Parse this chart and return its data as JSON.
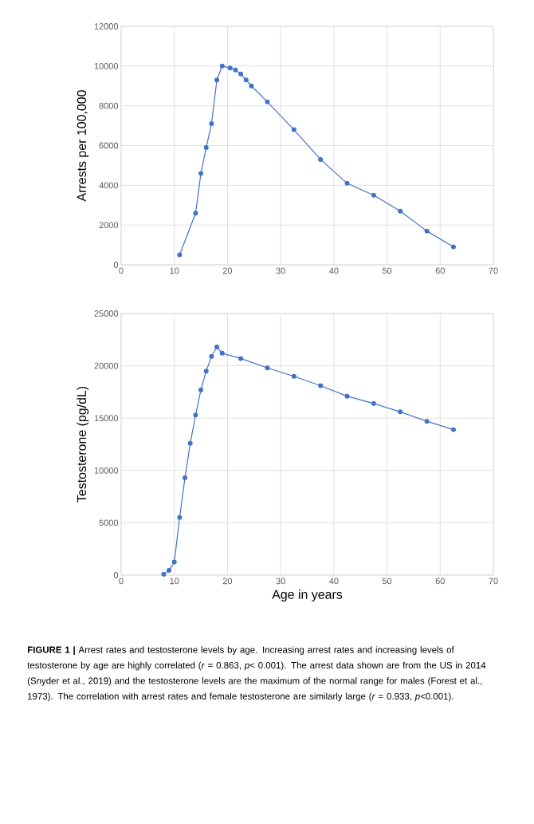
{
  "chart_data": [
    {
      "type": "line",
      "ylabel": "Arrests per 100,000",
      "x": [
        11,
        14,
        15,
        16,
        17,
        18,
        19,
        20.5,
        21.5,
        22.5,
        23.5,
        24.5,
        27.5,
        32.5,
        37.5,
        42.5,
        47.5,
        52.5,
        57.5,
        62.5
      ],
      "series": [
        {
          "color": "#4472c4",
          "values": [
            500,
            2600,
            4600,
            5900,
            7100,
            9300,
            10000,
            9900,
            9800,
            9600,
            9300,
            9000,
            8200,
            6800,
            5300,
            4100,
            3500,
            2700,
            1700,
            900
          ]
        }
      ],
      "xlim": [
        0,
        70
      ],
      "xticks": [
        0,
        10,
        20,
        30,
        40,
        50,
        60,
        70
      ],
      "ylim": [
        0,
        12000
      ],
      "yticks": [
        0,
        2000,
        4000,
        6000,
        8000,
        10000,
        12000
      ],
      "grid": true,
      "marker": "circle",
      "line_style": "solid"
    },
    {
      "type": "line",
      "ylabel": "Testosterone (pg/dL)",
      "xlabel": "Age in years",
      "x": [
        8,
        9,
        10,
        11,
        12,
        13,
        14,
        15,
        16,
        17,
        18,
        19,
        22.5,
        27.5,
        32.5,
        37.5,
        42.5,
        47.5,
        52.5,
        57.5,
        62.5
      ],
      "series": [
        {
          "color": "#4472c4",
          "values": [
            80,
            450,
            1250,
            5500,
            9300,
            12600,
            15300,
            17700,
            19500,
            20900,
            21800,
            21200,
            20700,
            19800,
            19000,
            18100,
            17100,
            16400,
            15600,
            14700,
            13900
          ]
        }
      ],
      "xlim": [
        0,
        70
      ],
      "xticks": [
        0,
        10,
        20,
        30,
        40,
        50,
        60,
        70
      ],
      "ylim": [
        0,
        25000
      ],
      "yticks": [
        0,
        5000,
        10000,
        15000,
        20000,
        25000
      ],
      "grid": true,
      "marker": "circle",
      "line_style": "solid",
      "annotations": [
        "**FIGURE 1 |** Arrest rates and testosterone levels by age. Increasing arrest rates and increasing levels of testosterone by age are highly correlated (*r* = 0.863, *p*< 0.001). The arrest data shown are from the US in 2014 (Snyder et al., 2019) and the testosterone levels are the maximum of the normal range for males (Forest et al., 1973). The correlation with arrest rates and female testosterone are similarly large (*r* = 0.933, *p*<0.001)."
      ]
    }
  ]
}
